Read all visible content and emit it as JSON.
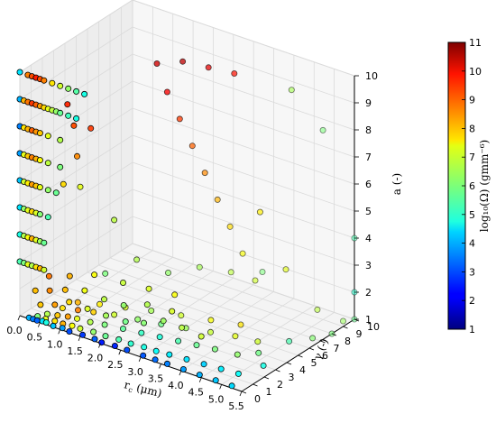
{
  "chart_data": {
    "type": "scatter",
    "projection": "3d",
    "title": "",
    "x_axis": {
      "label_main": "r",
      "label_sub": "c",
      "label_unit": " (μm)",
      "range": [
        0,
        5.5
      ],
      "ticks": [
        "0.0",
        "0.5",
        "1.0",
        "1.5",
        "2.0",
        "2.5",
        "3.0",
        "3.5",
        "4.0",
        "4.5",
        "5.0",
        "5.5"
      ]
    },
    "y_axis": {
      "label": "γ (-)",
      "range": [
        0,
        10
      ],
      "ticks": [
        "0",
        "1",
        "2",
        "3",
        "4",
        "5",
        "6",
        "7",
        "8",
        "9",
        "10"
      ]
    },
    "z_axis": {
      "label": "a (-)",
      "range": [
        1,
        10
      ],
      "ticks": [
        "1",
        "2",
        "3",
        "4",
        "5",
        "6",
        "7",
        "8",
        "9",
        "10"
      ]
    },
    "colorbar": {
      "label": "log₁₀(Ω) (gmm⁻⁶)",
      "range": [
        1,
        11
      ],
      "ticks": [
        "1",
        "2",
        "3",
        "4",
        "5",
        "6",
        "7",
        "8",
        "9",
        "10",
        "11"
      ],
      "colormap": "jet"
    },
    "grid": true,
    "marker": {
      "edge_color": "#000000"
    },
    "points": [
      [
        0.2,
        0.1,
        1.0,
        4.0
      ],
      [
        0.3,
        0.1,
        1.0,
        3.5
      ],
      [
        0.4,
        0.1,
        1.0,
        3.2
      ],
      [
        0.5,
        0.2,
        1.0,
        4.5
      ],
      [
        0.6,
        0.2,
        1.0,
        5.0
      ],
      [
        0.8,
        0.1,
        1.0,
        4.2
      ],
      [
        1.0,
        0.2,
        1.0,
        3.8
      ],
      [
        1.2,
        0.1,
        1.0,
        3.0
      ],
      [
        1.5,
        0.2,
        1.0,
        2.8
      ],
      [
        1.8,
        0.2,
        1.0,
        3.2
      ],
      [
        2.0,
        0.1,
        1.0,
        2.5
      ],
      [
        2.3,
        0.2,
        1.0,
        2.6
      ],
      [
        2.6,
        0.2,
        1.0,
        3.0
      ],
      [
        3.0,
        0.2,
        1.0,
        3.1
      ],
      [
        3.3,
        0.2,
        1.0,
        3.3
      ],
      [
        3.6,
        0.2,
        1.0,
        3.5
      ],
      [
        4.0,
        0.2,
        1.0,
        3.8
      ],
      [
        4.4,
        0.2,
        1.0,
        4.0
      ],
      [
        4.8,
        0.2,
        1.0,
        4.2
      ],
      [
        5.2,
        0.2,
        1.0,
        4.4
      ],
      [
        0.3,
        0.5,
        1.0,
        6.0
      ],
      [
        0.5,
        0.5,
        1.0,
        7.0
      ],
      [
        0.7,
        0.6,
        1.0,
        7.5
      ],
      [
        0.9,
        0.6,
        1.0,
        8.0
      ],
      [
        1.1,
        0.7,
        1.0,
        7.2
      ],
      [
        1.3,
        0.7,
        1.0,
        6.8
      ],
      [
        1.6,
        0.8,
        1.0,
        6.2
      ],
      [
        1.9,
        0.8,
        1.0,
        5.8
      ],
      [
        2.2,
        0.9,
        1.0,
        5.5
      ],
      [
        2.5,
        0.9,
        1.0,
        5.2
      ],
      [
        2.8,
        1.0,
        1.0,
        5.0
      ],
      [
        3.1,
        1.0,
        1.0,
        4.8
      ],
      [
        3.4,
        1.1,
        1.0,
        4.6
      ],
      [
        3.8,
        1.2,
        1.0,
        4.5
      ],
      [
        4.2,
        1.3,
        1.0,
        4.3
      ],
      [
        4.6,
        1.4,
        1.0,
        4.6
      ],
      [
        5.0,
        1.5,
        1.0,
        4.8
      ],
      [
        0.4,
        1.0,
        1.0,
        6.5
      ],
      [
        0.6,
        1.2,
        1.0,
        7.8
      ],
      [
        0.8,
        1.4,
        1.0,
        8.2
      ],
      [
        1.0,
        1.5,
        1.0,
        7.0
      ],
      [
        1.3,
        1.6,
        1.0,
        6.5
      ],
      [
        1.6,
        1.8,
        1.0,
        6.0
      ],
      [
        2.0,
        2.0,
        1.0,
        5.7
      ],
      [
        2.4,
        2.2,
        1.0,
        5.3
      ],
      [
        2.8,
        2.4,
        1.0,
        5.1
      ],
      [
        3.2,
        2.6,
        1.0,
        5.5
      ],
      [
        3.6,
        2.8,
        1.0,
        5.8
      ],
      [
        4.0,
        3.0,
        1.0,
        6.0
      ],
      [
        4.5,
        3.2,
        1.0,
        6.2
      ],
      [
        0.5,
        2.0,
        1.0,
        7.5
      ],
      [
        0.8,
        2.3,
        1.0,
        8.5
      ],
      [
        1.1,
        2.6,
        1.0,
        7.7
      ],
      [
        1.5,
        3.0,
        1.0,
        6.8
      ],
      [
        2.0,
        3.3,
        1.0,
        6.2
      ],
      [
        2.5,
        3.6,
        1.0,
        5.9
      ],
      [
        3.0,
        4.0,
        1.0,
        6.3
      ],
      [
        3.5,
        4.4,
        1.0,
        6.7
      ],
      [
        4.0,
        4.8,
        1.0,
        7.0
      ],
      [
        0.6,
        3.0,
        1.0,
        8.0
      ],
      [
        1.0,
        3.5,
        1.0,
        7.4
      ],
      [
        1.5,
        4.0,
        1.0,
        6.9
      ],
      [
        2.0,
        4.5,
        1.0,
        6.4
      ],
      [
        2.6,
        5.0,
        1.0,
        6.8
      ],
      [
        3.2,
        5.5,
        1.0,
        7.2
      ],
      [
        3.8,
        6.0,
        1.0,
        7.5
      ],
      [
        0.4,
        0.4,
        1.5,
        7.8
      ],
      [
        0.7,
        0.6,
        1.6,
        8.2
      ],
      [
        1.0,
        0.8,
        1.8,
        7.6
      ],
      [
        1.4,
        1.0,
        1.7,
        6.9
      ],
      [
        1.8,
        1.2,
        1.6,
        6.4
      ],
      [
        2.2,
        1.5,
        1.5,
        5.9
      ],
      [
        2.6,
        1.7,
        1.6,
        6.1
      ],
      [
        3.0,
        2.0,
        1.8,
        6.3
      ],
      [
        3.4,
        2.2,
        1.7,
        6.6
      ],
      [
        3.8,
        2.5,
        1.5,
        6.8
      ],
      [
        0.3,
        0.3,
        2.0,
        7.9
      ],
      [
        0.6,
        0.5,
        2.1,
        8.4
      ],
      [
        0.9,
        0.8,
        2.2,
        7.9
      ],
      [
        1.3,
        1.1,
        2.3,
        7.1
      ],
      [
        1.7,
        1.4,
        2.1,
        6.6
      ],
      [
        2.1,
        1.7,
        2.0,
        6.2
      ],
      [
        2.6,
        2.0,
        2.2,
        6.5
      ],
      [
        3.1,
        2.4,
        2.1,
        6.9
      ],
      [
        0.5,
        0.8,
        2.5,
        8.6
      ],
      [
        0.9,
        1.2,
        2.6,
        8.0
      ],
      [
        1.4,
        1.6,
        2.8,
        7.2
      ],
      [
        2.0,
        2.0,
        2.7,
        6.7
      ],
      [
        2.5,
        2.5,
        2.6,
        6.9
      ],
      [
        3.0,
        3.0,
        2.5,
        7.2
      ],
      [
        1.0,
        4.0,
        2.0,
        6.0
      ],
      [
        1.5,
        5.0,
        2.5,
        6.5
      ],
      [
        2.0,
        6.0,
        2.0,
        6.2
      ],
      [
        2.5,
        7.0,
        2.2,
        6.4
      ],
      [
        3.0,
        8.0,
        2.0,
        6.6
      ],
      [
        3.5,
        9.0,
        2.0,
        6.0
      ],
      [
        4.5,
        5.0,
        1.0,
        6.8
      ],
      [
        5.0,
        6.0,
        1.0,
        5.5
      ],
      [
        5.5,
        8.0,
        1.0,
        6.0
      ],
      [
        5.5,
        9.0,
        1.2,
        6.3
      ],
      [
        5.5,
        10.0,
        1.0,
        5.8
      ],
      [
        5.3,
        7.0,
        1.0,
        6.1
      ],
      [
        4.8,
        4.0,
        1.0,
        5.9
      ],
      [
        5.2,
        3.0,
        1.0,
        5.0
      ],
      [
        0.0,
        0.0,
        3.0,
        5.5
      ],
      [
        0.0,
        0.0,
        4.0,
        5.0
      ],
      [
        0.0,
        0.0,
        5.0,
        4.5
      ],
      [
        0.0,
        0.0,
        6.0,
        4.2
      ],
      [
        0.0,
        0.0,
        7.0,
        3.8
      ],
      [
        0.0,
        0.0,
        8.0,
        3.5
      ],
      [
        0.0,
        0.0,
        9.0,
        4.0
      ],
      [
        0.0,
        0.0,
        10.0,
        4.5
      ],
      [
        0.1,
        0.0,
        3.0,
        6.0
      ],
      [
        0.2,
        0.0,
        3.0,
        7.0
      ],
      [
        0.3,
        0.0,
        3.0,
        6.5
      ],
      [
        0.4,
        0.0,
        3.0,
        7.5
      ],
      [
        0.5,
        0.0,
        3.0,
        8.0
      ],
      [
        0.6,
        0.0,
        3.0,
        6.8
      ],
      [
        0.1,
        0.0,
        4.0,
        6.5
      ],
      [
        0.2,
        0.0,
        4.0,
        7.2
      ],
      [
        0.3,
        0.0,
        4.0,
        8.0
      ],
      [
        0.4,
        0.0,
        4.0,
        7.0
      ],
      [
        0.5,
        0.0,
        4.0,
        6.3
      ],
      [
        0.6,
        0.0,
        4.0,
        5.8
      ],
      [
        0.1,
        0.0,
        5.0,
        6.2
      ],
      [
        0.2,
        0.0,
        5.0,
        7.0
      ],
      [
        0.3,
        0.0,
        5.0,
        7.6
      ],
      [
        0.4,
        0.0,
        5.0,
        6.9
      ],
      [
        0.5,
        0.0,
        5.0,
        6.1
      ],
      [
        0.7,
        0.0,
        5.0,
        5.5
      ],
      [
        0.1,
        0.0,
        6.0,
        6.8
      ],
      [
        0.2,
        0.0,
        6.0,
        7.4
      ],
      [
        0.3,
        0.0,
        6.0,
        8.2
      ],
      [
        0.4,
        0.0,
        6.0,
        7.8
      ],
      [
        0.5,
        0.0,
        6.0,
        7.0
      ],
      [
        0.7,
        0.0,
        6.0,
        6.2
      ],
      [
        0.9,
        0.0,
        6.0,
        5.8
      ],
      [
        0.1,
        0.0,
        7.0,
        7.0
      ],
      [
        0.2,
        0.0,
        7.0,
        7.8
      ],
      [
        0.3,
        0.0,
        7.0,
        8.5
      ],
      [
        0.4,
        0.0,
        7.0,
        8.0
      ],
      [
        0.5,
        0.0,
        7.0,
        7.2
      ],
      [
        0.7,
        0.0,
        7.0,
        6.6
      ],
      [
        1.0,
        0.0,
        7.0,
        6.0
      ],
      [
        0.1,
        0.0,
        8.0,
        7.5
      ],
      [
        0.2,
        0.0,
        8.0,
        8.0
      ],
      [
        0.3,
        0.0,
        8.0,
        8.8
      ],
      [
        0.4,
        0.0,
        8.0,
        8.3
      ],
      [
        0.5,
        0.0,
        8.0,
        7.8
      ],
      [
        0.7,
        0.0,
        8.0,
        7.0
      ],
      [
        1.0,
        0.0,
        8.0,
        6.5
      ],
      [
        0.1,
        0.0,
        9.0,
        8.0
      ],
      [
        0.2,
        0.0,
        9.0,
        8.6
      ],
      [
        0.3,
        0.0,
        9.0,
        9.2
      ],
      [
        0.4,
        0.0,
        9.0,
        8.8
      ],
      [
        0.5,
        0.0,
        9.0,
        8.2
      ],
      [
        0.6,
        0.0,
        9.0,
        7.6
      ],
      [
        0.7,
        0.0,
        9.0,
        7.0
      ],
      [
        0.8,
        0.0,
        9.0,
        6.6
      ],
      [
        0.9,
        0.0,
        9.0,
        6.2
      ],
      [
        1.0,
        0.0,
        9.0,
        5.8
      ],
      [
        1.2,
        0.0,
        9.0,
        5.4
      ],
      [
        1.4,
        0.0,
        9.0,
        5.0
      ],
      [
        0.2,
        0.0,
        10.0,
        8.5
      ],
      [
        0.3,
        0.0,
        10.0,
        9.0
      ],
      [
        0.4,
        0.0,
        10.0,
        9.5
      ],
      [
        0.5,
        0.0,
        10.0,
        9.0
      ],
      [
        0.6,
        0.0,
        10.0,
        8.5
      ],
      [
        0.8,
        0.0,
        10.0,
        7.5
      ],
      [
        1.0,
        0.0,
        10.0,
        6.8
      ],
      [
        1.2,
        0.0,
        10.0,
        6.2
      ],
      [
        1.4,
        0.0,
        10.0,
        5.6
      ],
      [
        1.6,
        0.0,
        10.0,
        5.0
      ],
      [
        0.8,
        1.0,
        6.0,
        7.6
      ],
      [
        1.0,
        1.5,
        7.0,
        8.4
      ],
      [
        1.2,
        2.0,
        8.0,
        9.2
      ],
      [
        0.9,
        1.0,
        9.0,
        9.4
      ],
      [
        1.2,
        0.5,
        8.5,
        9.0
      ],
      [
        0.8,
        2.5,
        5.5,
        7.0
      ],
      [
        1.5,
        3.0,
        4.5,
        6.6
      ],
      [
        2.0,
        5.0,
        10.0,
        10.2
      ],
      [
        2.5,
        5.5,
        10.2,
        10.4
      ],
      [
        3.0,
        6.0,
        10.1,
        10.0
      ],
      [
        3.5,
        6.5,
        10.0,
        9.6
      ],
      [
        2.2,
        5.2,
        9.0,
        9.8
      ],
      [
        2.4,
        5.6,
        8.0,
        9.2
      ],
      [
        2.6,
        6.0,
        7.0,
        8.8
      ],
      [
        2.8,
        6.4,
        6.0,
        8.4
      ],
      [
        3.0,
        6.8,
        5.0,
        8.0
      ],
      [
        3.2,
        7.2,
        4.0,
        7.6
      ],
      [
        3.4,
        7.6,
        3.0,
        7.2
      ],
      [
        3.6,
        8.0,
        2.0,
        6.8
      ],
      [
        4.5,
        8.0,
        9.5,
        6.4
      ],
      [
        5.0,
        9.0,
        8.0,
        6.0
      ],
      [
        5.5,
        10.0,
        4.0,
        5.5
      ],
      [
        5.5,
        10.0,
        2.0,
        5.2
      ],
      [
        4.0,
        7.0,
        5.0,
        7.4
      ],
      [
        4.5,
        7.5,
        3.0,
        7.0
      ],
      [
        5.0,
        8.5,
        1.5,
        6.6
      ]
    ]
  }
}
